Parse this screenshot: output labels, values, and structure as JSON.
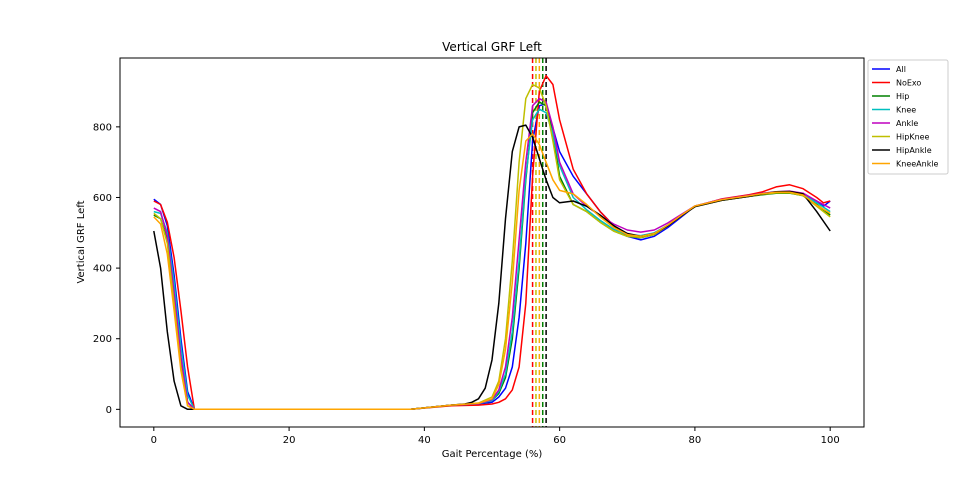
{
  "chart_data": {
    "type": "line",
    "title": "Vertical GRF Left",
    "xlabel": "Gait Percentage (%)",
    "ylabel": "Vertical GRF Left",
    "xlim": [
      -5,
      105
    ],
    "ylim": [
      -50,
      995
    ],
    "xticks": [
      0,
      20,
      40,
      60,
      80,
      100
    ],
    "yticks": [
      0,
      200,
      400,
      600,
      800
    ],
    "grid": false,
    "legend": "outside-top-right",
    "series": [
      {
        "name": "All",
        "color": "#0000ff",
        "x": [
          0,
          1,
          2,
          3,
          4,
          5,
          6,
          8,
          38,
          44,
          48,
          50,
          51,
          52,
          53,
          54,
          55,
          56,
          57,
          58,
          60,
          62,
          64,
          66,
          68,
          70,
          72,
          74,
          76,
          78,
          80,
          84,
          88,
          90,
          92,
          94,
          96,
          98,
          99,
          100
        ],
        "y": [
          595,
          580,
          520,
          380,
          200,
          50,
          0,
          0,
          0,
          12,
          15,
          20,
          35,
          60,
          120,
          260,
          470,
          760,
          860,
          865,
          730,
          660,
          610,
          560,
          520,
          490,
          480,
          490,
          515,
          545,
          575,
          595,
          607,
          612,
          614,
          614,
          608,
          590,
          575,
          590
        ]
      },
      {
        "name": "NoExo",
        "color": "#ff0000",
        "x": [
          0,
          1,
          2,
          3,
          4,
          5,
          6,
          8,
          38,
          44,
          48,
          50,
          51,
          52,
          53,
          54,
          55,
          56,
          57,
          58,
          59,
          60,
          62,
          64,
          66,
          68,
          70,
          72,
          74,
          76,
          78,
          80,
          84,
          88,
          90,
          92,
          94,
          96,
          98,
          99,
          100
        ],
        "y": [
          590,
          580,
          530,
          430,
          280,
          120,
          0,
          0,
          0,
          10,
          12,
          15,
          20,
          30,
          55,
          120,
          300,
          660,
          900,
          945,
          920,
          820,
          680,
          610,
          560,
          520,
          495,
          490,
          498,
          520,
          548,
          575,
          596,
          608,
          616,
          630,
          636,
          625,
          600,
          585,
          590
        ]
      },
      {
        "name": "Hip",
        "color": "#008000",
        "x": [
          0,
          1,
          2,
          3,
          4,
          5,
          6,
          8,
          38,
          44,
          48,
          50,
          51,
          52,
          53,
          54,
          55,
          56,
          57,
          58,
          59,
          60,
          62,
          64,
          66,
          68,
          70,
          72,
          74,
          76,
          78,
          80,
          84,
          88,
          90,
          92,
          94,
          96,
          98,
          100
        ],
        "y": [
          550,
          540,
          480,
          320,
          140,
          20,
          0,
          0,
          0,
          12,
          16,
          25,
          45,
          90,
          200,
          400,
          650,
          840,
          870,
          860,
          780,
          660,
          580,
          560,
          530,
          505,
          490,
          486,
          495,
          520,
          548,
          575,
          592,
          603,
          608,
          612,
          612,
          605,
          580,
          550
        ]
      },
      {
        "name": "Knee",
        "color": "#00bfbf",
        "x": [
          0,
          1,
          2,
          3,
          4,
          5,
          6,
          8,
          38,
          44,
          48,
          50,
          51,
          52,
          53,
          54,
          55,
          56,
          57,
          58,
          59,
          60,
          62,
          64,
          66,
          68,
          70,
          72,
          74,
          76,
          78,
          80,
          84,
          88,
          90,
          92,
          94,
          96,
          98,
          100
        ],
        "y": [
          560,
          555,
          500,
          360,
          180,
          40,
          0,
          0,
          0,
          12,
          16,
          25,
          50,
          100,
          220,
          420,
          660,
          820,
          850,
          840,
          780,
          690,
          600,
          565,
          535,
          510,
          495,
          492,
          500,
          522,
          550,
          576,
          594,
          604,
          610,
          614,
          615,
          608,
          585,
          560
        ]
      },
      {
        "name": "Ankle",
        "color": "#bf00bf",
        "x": [
          0,
          1,
          2,
          3,
          4,
          5,
          6,
          8,
          38,
          44,
          48,
          50,
          51,
          52,
          53,
          54,
          55,
          56,
          57,
          58,
          59,
          60,
          62,
          64,
          66,
          68,
          70,
          72,
          74,
          76,
          78,
          80,
          84,
          88,
          90,
          92,
          94,
          96,
          98,
          100
        ],
        "y": [
          570,
          560,
          490,
          330,
          150,
          20,
          0,
          0,
          0,
          12,
          16,
          28,
          55,
          120,
          260,
          480,
          700,
          860,
          880,
          870,
          800,
          700,
          610,
          575,
          548,
          525,
          508,
          502,
          508,
          528,
          552,
          576,
          595,
          606,
          612,
          616,
          618,
          612,
          590,
          570
        ]
      },
      {
        "name": "HipKnee",
        "color": "#bfbf00",
        "x": [
          0,
          1,
          2,
          3,
          4,
          5,
          6,
          8,
          38,
          44,
          48,
          50,
          51,
          52,
          53,
          54,
          55,
          56,
          57,
          58,
          59,
          60,
          62,
          64,
          66,
          68,
          70,
          72,
          74,
          76,
          78,
          80,
          84,
          88,
          90,
          92,
          94,
          96,
          98,
          100
        ],
        "y": [
          555,
          540,
          470,
          300,
          120,
          10,
          0,
          0,
          0,
          12,
          18,
          35,
          80,
          200,
          420,
          700,
          880,
          920,
          910,
          860,
          760,
          650,
          580,
          560,
          530,
          505,
          490,
          487,
          495,
          520,
          548,
          574,
          592,
          603,
          609,
          613,
          613,
          605,
          575,
          545
        ]
      },
      {
        "name": "HipAnkle",
        "color": "#000000",
        "x": [
          0,
          1,
          2,
          3,
          4,
          5,
          8,
          38,
          44,
          46,
          47,
          48,
          49,
          50,
          51,
          52,
          53,
          54,
          55,
          56,
          57,
          58,
          59,
          60,
          62,
          64,
          66,
          68,
          70,
          72,
          74,
          76,
          78,
          80,
          84,
          88,
          90,
          92,
          94,
          96,
          98,
          100
        ],
        "y": [
          505,
          400,
          220,
          80,
          10,
          0,
          0,
          0,
          12,
          15,
          20,
          30,
          60,
          140,
          300,
          540,
          730,
          800,
          805,
          770,
          710,
          650,
          600,
          585,
          590,
          575,
          550,
          520,
          498,
          490,
          498,
          520,
          548,
          574,
          592,
          603,
          610,
          616,
          617,
          610,
          560,
          505
        ]
      },
      {
        "name": "KneeAnkle",
        "color": "#ffa500",
        "x": [
          0,
          1,
          2,
          3,
          4,
          5,
          6,
          8,
          38,
          44,
          48,
          50,
          51,
          52,
          53,
          54,
          55,
          56,
          57,
          58,
          59,
          60,
          62,
          64,
          66,
          68,
          70,
          72,
          74,
          76,
          78,
          80,
          84,
          88,
          90,
          92,
          94,
          96,
          98,
          100
        ],
        "y": [
          545,
          525,
          440,
          280,
          110,
          10,
          0,
          0,
          0,
          12,
          17,
          30,
          70,
          170,
          360,
          620,
          760,
          780,
          750,
          700,
          650,
          620,
          610,
          580,
          545,
          515,
          495,
          490,
          498,
          522,
          550,
          576,
          594,
          605,
          611,
          615,
          615,
          607,
          578,
          555
        ]
      }
    ],
    "vlines": [
      {
        "x": 56.0,
        "color": "#ff0000"
      },
      {
        "x": 56.5,
        "color": "#bfbf00"
      },
      {
        "x": 57.0,
        "color": "#ffa500"
      },
      {
        "x": 57.5,
        "color": "#008000"
      },
      {
        "x": 58.0,
        "color": "#000000"
      }
    ]
  }
}
